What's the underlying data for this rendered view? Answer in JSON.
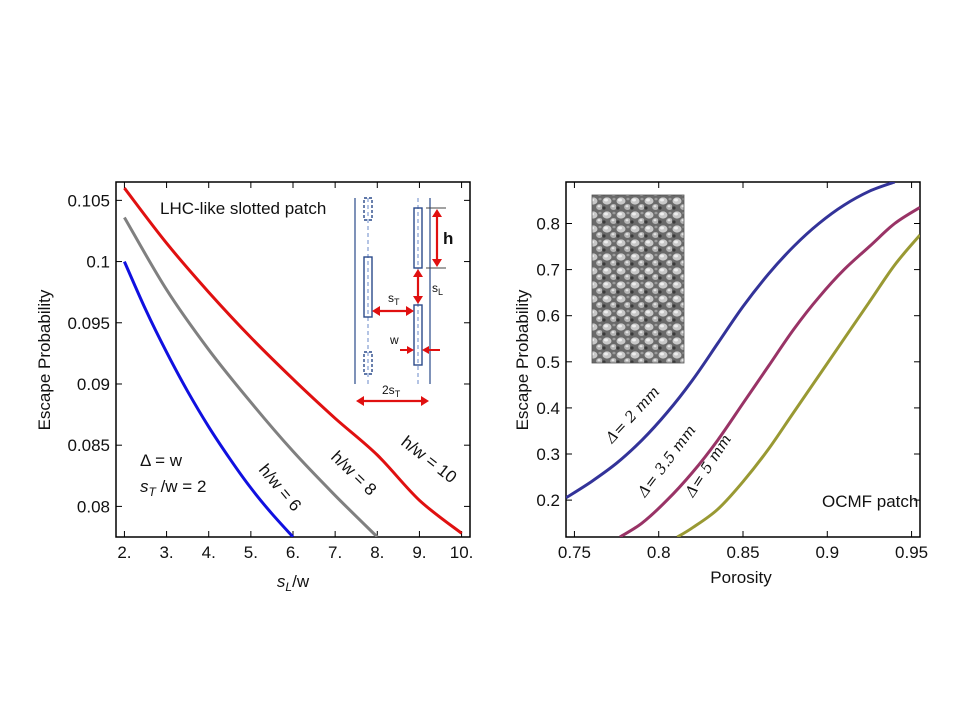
{
  "chart_data": [
    {
      "type": "line",
      "title": "LHC-like slotted patch",
      "xlabel": "s_L/w",
      "ylabel": "Escape Probability",
      "xlim": [
        1.8,
        10.2
      ],
      "ylim": [
        0.0775,
        0.1065
      ],
      "xticks": [
        "2.",
        "3.",
        "4.",
        "5.",
        "6.",
        "7.",
        "8.",
        "9.",
        "10."
      ],
      "yticks": [
        "0.08",
        "0.085",
        "0.09",
        "0.095",
        "0.1",
        "0.105"
      ],
      "annotation_delta": "Δ = w",
      "annotation_st": "s_T /w = 2",
      "series": [
        {
          "name": "h/w = 6",
          "color": "#1010e0",
          "x": [
            2,
            2.5,
            3,
            3.5,
            4,
            4.5,
            5,
            5.5,
            6
          ],
          "y": [
            0.1,
            0.0961,
            0.0926,
            0.0894,
            0.0865,
            0.0839,
            0.0815,
            0.0794,
            0.0775
          ]
        },
        {
          "name": "h/w = 8",
          "color": "#808080",
          "x": [
            2,
            3,
            4,
            5,
            6,
            7,
            8
          ],
          "y": [
            0.1036,
            0.0977,
            0.0928,
            0.0885,
            0.0845,
            0.0809,
            0.0775
          ]
        },
        {
          "name": "h/w = 10",
          "color": "#e01010",
          "x": [
            2,
            3,
            4,
            5,
            6,
            7,
            8,
            9,
            10
          ],
          "y": [
            0.106,
            0.1015,
            0.0975,
            0.0938,
            0.0904,
            0.0872,
            0.0842,
            0.0805,
            0.0778
          ]
        }
      ],
      "inset_labels": {
        "h": "h",
        "sL": "s",
        "sL_sub": "L",
        "sT": "s",
        "sT_sub": "T",
        "w": "w",
        "two_sT": "2s",
        "two_sT_sub": "T"
      }
    },
    {
      "type": "line",
      "title": "OCMF patch",
      "xlabel": "Porosity",
      "ylabel": "Escape Probability",
      "xlim": [
        0.745,
        0.955
      ],
      "ylim": [
        0.12,
        0.89
      ],
      "xticks": [
        "0.75",
        "0.8",
        "0.85",
        "0.9",
        "0.95"
      ],
      "yticks": [
        "0.2",
        "0.3",
        "0.4",
        "0.5",
        "0.6",
        "0.7",
        "0.8"
      ],
      "series": [
        {
          "name": "Δ= 2 mm",
          "color": "#333399",
          "x": [
            0.745,
            0.76,
            0.775,
            0.79,
            0.805,
            0.82,
            0.835,
            0.85,
            0.865,
            0.88,
            0.895,
            0.91,
            0.925,
            0.94
          ],
          "y": [
            0.205,
            0.24,
            0.28,
            0.33,
            0.39,
            0.46,
            0.54,
            0.62,
            0.69,
            0.75,
            0.8,
            0.84,
            0.87,
            0.89
          ]
        },
        {
          "name": "Δ= 3.5 mm",
          "color": "#993366",
          "x": [
            0.777,
            0.79,
            0.805,
            0.82,
            0.835,
            0.85,
            0.865,
            0.88,
            0.895,
            0.91,
            0.925,
            0.94,
            0.955
          ],
          "y": [
            0.12,
            0.15,
            0.2,
            0.26,
            0.33,
            0.41,
            0.49,
            0.57,
            0.64,
            0.7,
            0.75,
            0.8,
            0.835
          ]
        },
        {
          "name": "Δ= 5 mm",
          "color": "#999933",
          "x": [
            0.811,
            0.82,
            0.835,
            0.85,
            0.865,
            0.88,
            0.895,
            0.91,
            0.925,
            0.94,
            0.955
          ],
          "y": [
            0.12,
            0.14,
            0.18,
            0.24,
            0.31,
            0.39,
            0.47,
            0.55,
            0.63,
            0.71,
            0.775
          ]
        }
      ]
    }
  ]
}
